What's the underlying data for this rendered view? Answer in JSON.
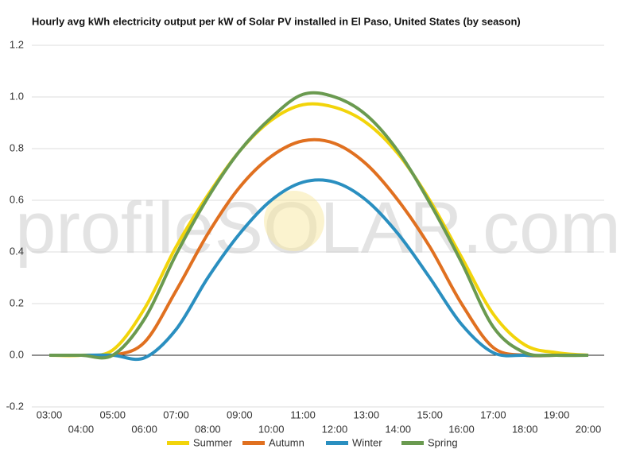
{
  "chart_data": {
    "type": "line",
    "title": "Hourly avg kWh electricity output per kW of Solar PV installed in El Paso, United States (by season)",
    "watermark": "profileSOLAR.com",
    "categories": [
      "03:00",
      "04:00",
      "05:00",
      "06:00",
      "07:00",
      "08:00",
      "09:00",
      "10:00",
      "11:00",
      "12:00",
      "13:00",
      "14:00",
      "15:00",
      "16:00",
      "17:00",
      "18:00",
      "19:00",
      "20:00"
    ],
    "series": [
      {
        "name": "Summer",
        "color": "#f2d40a",
        "values": [
          0,
          0,
          0.02,
          0.18,
          0.42,
          0.62,
          0.79,
          0.91,
          0.97,
          0.96,
          0.9,
          0.78,
          0.6,
          0.38,
          0.16,
          0.04,
          0.01,
          0
        ]
      },
      {
        "name": "Autumn",
        "color": "#e07020",
        "values": [
          0,
          0,
          0,
          0.05,
          0.25,
          0.47,
          0.65,
          0.77,
          0.83,
          0.82,
          0.74,
          0.6,
          0.42,
          0.2,
          0.03,
          0,
          0,
          0
        ]
      },
      {
        "name": "Winter",
        "color": "#2a8fc0",
        "values": [
          0,
          0,
          0,
          -0.01,
          0.1,
          0.3,
          0.47,
          0.6,
          0.67,
          0.67,
          0.6,
          0.47,
          0.3,
          0.12,
          0.01,
          0,
          0,
          0
        ]
      },
      {
        "name": "Spring",
        "color": "#6a9a50",
        "values": [
          0,
          0,
          0,
          0.14,
          0.39,
          0.61,
          0.79,
          0.92,
          1.01,
          1.0,
          0.93,
          0.79,
          0.59,
          0.36,
          0.11,
          0.01,
          0,
          0
        ]
      }
    ],
    "ylim": [
      -0.2,
      1.2
    ],
    "yticks": [
      -0.2,
      {
        "value": 0,
        "label": "0.0"
      },
      0.2,
      0.4,
      0.6,
      0.8,
      {
        "value": 1,
        "label": "1.0"
      },
      1.2
    ],
    "grid": true
  }
}
